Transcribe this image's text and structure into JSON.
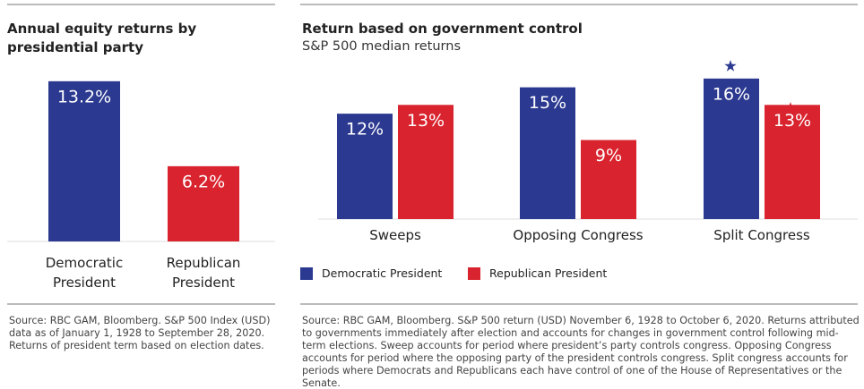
{
  "chart_data": [
    {
      "type": "bar",
      "title": "Annual equity returns by presidential party",
      "categories": [
        "Democratic President",
        "Republican President"
      ],
      "values": [
        13.2,
        6.2
      ],
      "value_labels": [
        "13.2%",
        "6.2%"
      ],
      "colors": [
        "#2b3990",
        "#d9232e"
      ],
      "ylim": [
        0,
        14
      ],
      "source": "Source: RBC GAM, Bloomberg. S&P 500 Index (USD) data as of January 1, 1928 to September 28, 2020. Returns of president term based on election dates."
    },
    {
      "type": "grouped_bar",
      "title": "Return based on government control",
      "subtitle": "S&P 500 median returns",
      "categories": [
        "Sweeps",
        "Opposing Congress",
        "Split Congress"
      ],
      "series": [
        {
          "name": "Democratic President",
          "color": "#2b3990",
          "values": [
            12,
            15,
            16
          ],
          "value_labels": [
            "12%",
            "15%",
            "16%"
          ]
        },
        {
          "name": "Republican President",
          "color": "#d9232e",
          "values": [
            13,
            9,
            13
          ],
          "value_labels": [
            "13%",
            "9%",
            "13%"
          ]
        }
      ],
      "ylim": [
        0,
        17
      ],
      "legend": "bottom-left",
      "source": "Source: RBC GAM, Bloomberg. S&P 500 return (USD) November 6, 1928 to October 6, 2020. Returns attributed to governments immediately after election and accounts for changes in government control following mid-term elections. Sweep accounts for period where president’s party controls congress. Opposing Congress accounts for period where the opposing party of the president controls congress. Split congress accounts for periods where Democrats and Republicans each have control of one of the House of Representatives or the Senate."
    }
  ]
}
